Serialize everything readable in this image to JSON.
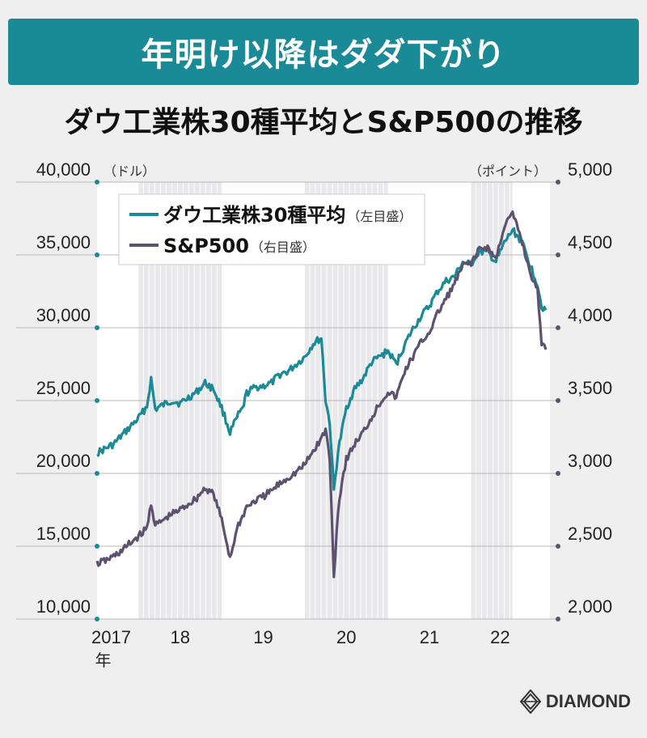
{
  "header": {
    "banner_title": "年明け以降はダダ下がり",
    "chart_title": "ダウ工業株30種平均とS&P500の推移"
  },
  "brand": {
    "logo_text": "DIAMOND"
  },
  "colors": {
    "dow": "#1a8a96",
    "sp500": "#5c5270",
    "banner": "#1a8a96"
  },
  "chart_data": {
    "type": "line",
    "title": "ダウ工業株30種平均とS&P500の推移",
    "left_axis": {
      "unit_label": "（ドル）",
      "range": [
        10000,
        40000
      ],
      "ticks": [
        {
          "v": 10000,
          "label": "10,000"
        },
        {
          "v": 15000,
          "label": "15,000"
        },
        {
          "v": 20000,
          "label": "20,000"
        },
        {
          "v": 25000,
          "label": "25,000"
        },
        {
          "v": 30000,
          "label": "30,000"
        },
        {
          "v": 35000,
          "label": "35,000"
        },
        {
          "v": 40000,
          "label": "40,000"
        }
      ]
    },
    "right_axis": {
      "unit_label": "（ポイント）",
      "range": [
        2000,
        5000
      ],
      "ticks": [
        {
          "v": 2000,
          "label": "2,000"
        },
        {
          "v": 2500,
          "label": "2,500"
        },
        {
          "v": 3000,
          "label": "3,000"
        },
        {
          "v": 3500,
          "label": "3,500"
        },
        {
          "v": 4000,
          "label": "4,000"
        },
        {
          "v": 4500,
          "label": "4,500"
        },
        {
          "v": 5000,
          "label": "5,000"
        }
      ]
    },
    "x_range": [
      2017.0,
      2022.45
    ],
    "x_ticks": [
      {
        "v": 2017.17,
        "label": "2017",
        "sub": "年"
      },
      {
        "v": 2018.0,
        "label": "18"
      },
      {
        "v": 2019.0,
        "label": "19"
      },
      {
        "v": 2020.0,
        "label": "20"
      },
      {
        "v": 2021.0,
        "label": "21"
      },
      {
        "v": 2021.85,
        "label": "22"
      }
    ],
    "shaded_periods": [
      [
        2017.5,
        2018.5
      ],
      [
        2019.5,
        2020.5
      ],
      [
        2021.5,
        2022.0
      ]
    ],
    "legend": {
      "position": "top-left",
      "items": [
        {
          "name": "ダウ工業株30種平均",
          "note": "（左目盛）",
          "series": "dow"
        },
        {
          "name": "S&P500",
          "note": "（右目盛）",
          "series": "sp500"
        }
      ]
    },
    "series": [
      {
        "key": "dow",
        "name": "ダウ工業株30種平均",
        "axis": "left",
        "x": [
          2017.0,
          2017.1,
          2017.2,
          2017.3,
          2017.4,
          2017.5,
          2017.6,
          2017.65,
          2017.7,
          2017.8,
          2017.9,
          2018.0,
          2018.1,
          2018.2,
          2018.3,
          2018.4,
          2018.5,
          2018.6,
          2018.7,
          2018.75,
          2018.8,
          2018.9,
          2019.0,
          2019.1,
          2019.2,
          2019.3,
          2019.4,
          2019.5,
          2019.6,
          2019.7,
          2019.75,
          2019.8,
          2019.85,
          2019.9,
          2019.95,
          2020.0,
          2020.1,
          2020.2,
          2020.3,
          2020.4,
          2020.5,
          2020.6,
          2020.7,
          2020.8,
          2020.9,
          2021.0,
          2021.1,
          2021.2,
          2021.3,
          2021.4,
          2021.5,
          2021.55,
          2021.6,
          2021.7,
          2021.8,
          2021.9,
          2022.0,
          2022.1,
          2022.2,
          2022.3,
          2022.35,
          2022.4
        ],
        "y": [
          21400,
          21700,
          22000,
          22600,
          23200,
          23800,
          24600,
          26500,
          24400,
          24700,
          25000,
          24800,
          25200,
          25600,
          26200,
          25800,
          24500,
          22800,
          24000,
          24400,
          25500,
          25900,
          26000,
          26200,
          26800,
          27000,
          27500,
          28000,
          28900,
          29300,
          25000,
          23500,
          18800,
          21500,
          23000,
          24500,
          25800,
          26500,
          27600,
          28000,
          28400,
          27500,
          28800,
          29900,
          30800,
          31500,
          32500,
          33200,
          33500,
          34500,
          34300,
          34900,
          35200,
          35200,
          34500,
          35800,
          36700,
          36000,
          34500,
          33000,
          31500,
          31200
        ]
      },
      {
        "key": "sp500",
        "name": "S&P500",
        "axis": "right",
        "x": [
          2017.0,
          2017.1,
          2017.2,
          2017.3,
          2017.4,
          2017.5,
          2017.6,
          2017.65,
          2017.7,
          2017.8,
          2017.9,
          2018.0,
          2018.1,
          2018.2,
          2018.3,
          2018.4,
          2018.5,
          2018.6,
          2018.7,
          2018.75,
          2018.8,
          2018.9,
          2019.0,
          2019.1,
          2019.2,
          2019.3,
          2019.4,
          2019.5,
          2019.6,
          2019.7,
          2019.75,
          2019.8,
          2019.85,
          2019.9,
          2019.95,
          2020.0,
          2020.1,
          2020.2,
          2020.3,
          2020.4,
          2020.5,
          2020.6,
          2020.7,
          2020.8,
          2020.9,
          2021.0,
          2021.1,
          2021.2,
          2021.3,
          2021.4,
          2021.5,
          2021.55,
          2021.6,
          2021.7,
          2021.8,
          2021.9,
          2022.0,
          2022.1,
          2022.2,
          2022.3,
          2022.35,
          2022.4
        ],
        "y": [
          2380,
          2400,
          2430,
          2470,
          2520,
          2570,
          2620,
          2800,
          2640,
          2680,
          2720,
          2750,
          2790,
          2830,
          2900,
          2860,
          2680,
          2420,
          2650,
          2700,
          2770,
          2810,
          2840,
          2880,
          2930,
          2970,
          3010,
          3060,
          3150,
          3240,
          3300,
          3100,
          2300,
          2750,
          2950,
          3100,
          3200,
          3280,
          3380,
          3480,
          3560,
          3520,
          3700,
          3800,
          3900,
          3970,
          4100,
          4200,
          4300,
          4420,
          4450,
          4480,
          4540,
          4550,
          4470,
          4700,
          4780,
          4620,
          4400,
          4250,
          3900,
          3850
        ]
      }
    ]
  }
}
